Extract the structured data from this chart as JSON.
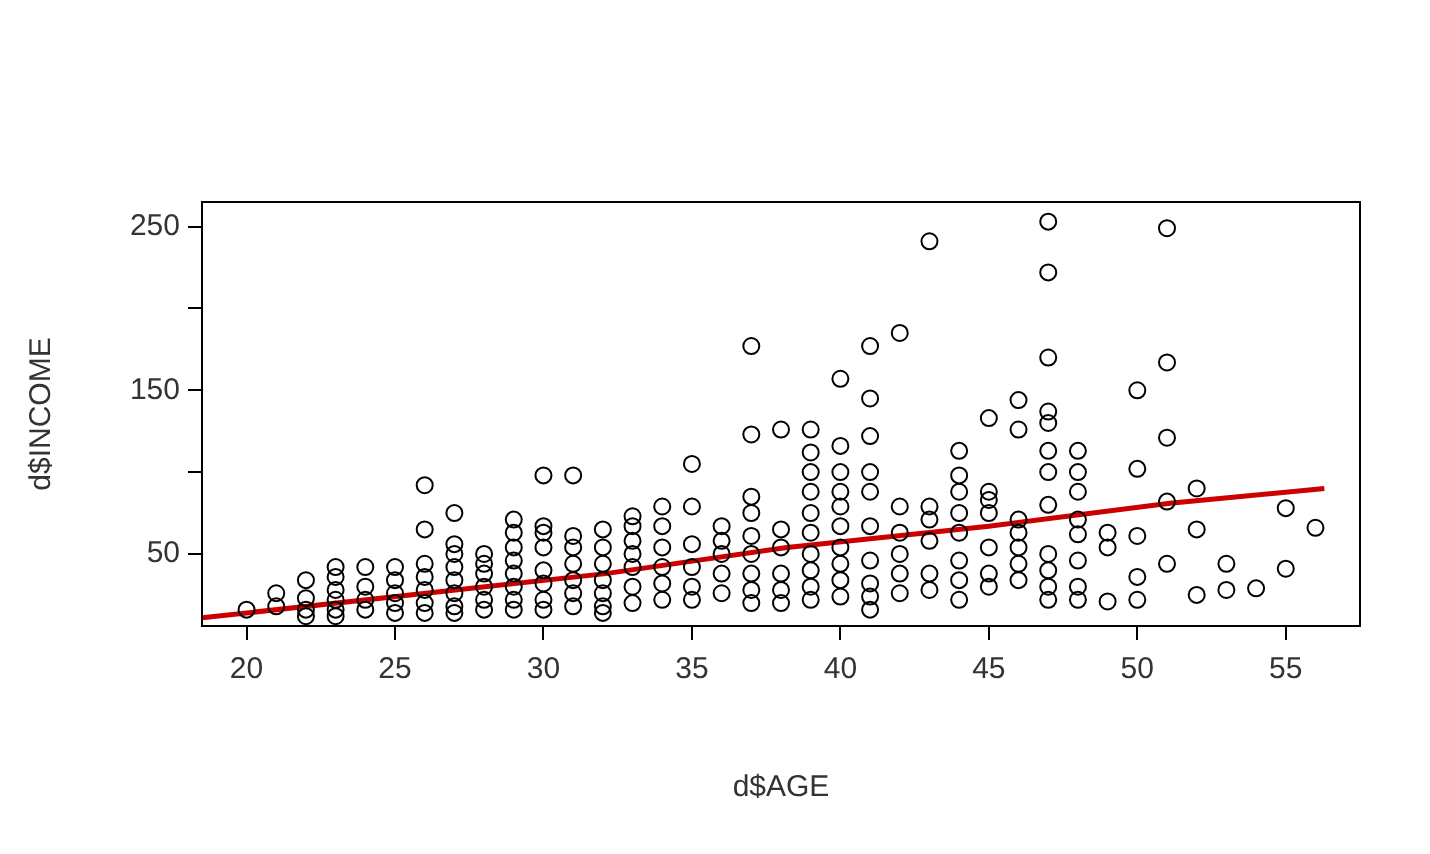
{
  "chart_data": {
    "type": "scatter",
    "xlabel": "d$AGE",
    "ylabel": "d$INCOME",
    "xlim": [
      18.5,
      57.5
    ],
    "ylim": [
      6,
      265
    ],
    "xticks": [
      20,
      25,
      30,
      35,
      40,
      45,
      50,
      55
    ],
    "yticks": [
      50,
      {
        "value": 100,
        "label": null
      },
      150,
      {
        "value": 200,
        "label": null
      },
      250
    ],
    "grid": false,
    "legend": false,
    "marker": "circle",
    "series": [
      {
        "type": "scatter",
        "color": "#000000",
        "x": [
          20,
          21,
          21,
          22,
          22,
          22,
          22,
          23,
          23,
          23,
          23,
          23,
          23,
          24,
          24,
          24,
          24,
          25,
          25,
          25,
          25,
          25,
          26,
          26,
          26,
          26,
          26,
          26,
          26,
          27,
          27,
          27,
          27,
          27,
          27,
          27,
          27,
          28,
          28,
          28,
          28,
          28,
          28,
          29,
          29,
          29,
          29,
          29,
          29,
          29,
          29,
          30,
          30,
          30,
          30,
          30,
          30,
          30,
          30,
          31,
          31,
          31,
          31,
          31,
          31,
          31,
          32,
          32,
          32,
          32,
          32,
          32,
          32,
          33,
          33,
          33,
          33,
          33,
          33,
          33,
          34,
          34,
          34,
          34,
          34,
          34,
          35,
          35,
          35,
          35,
          35,
          35,
          36,
          36,
          36,
          36,
          36,
          37,
          37,
          37,
          37,
          37,
          37,
          37,
          37,
          37,
          38,
          38,
          38,
          38,
          38,
          38,
          39,
          39,
          39,
          39,
          39,
          39,
          39,
          39,
          39,
          39,
          40,
          40,
          40,
          40,
          40,
          40,
          40,
          40,
          40,
          40,
          41,
          41,
          41,
          41,
          41,
          41,
          41,
          41,
          41,
          41,
          42,
          42,
          42,
          42,
          42,
          42,
          43,
          43,
          43,
          43,
          43,
          43,
          44,
          44,
          44,
          44,
          44,
          44,
          44,
          44,
          45,
          45,
          45,
          45,
          45,
          45,
          45,
          46,
          46,
          46,
          46,
          46,
          46,
          46,
          47,
          47,
          47,
          47,
          47,
          47,
          47,
          47,
          47,
          47,
          47,
          47,
          48,
          48,
          48,
          48,
          48,
          48,
          48,
          48,
          49,
          49,
          49,
          50,
          50,
          50,
          50,
          50,
          51,
          51,
          51,
          51,
          51,
          52,
          52,
          52,
          53,
          53,
          54,
          55,
          55,
          56
        ],
        "values": [
          16,
          26,
          18,
          34,
          23,
          16,
          12,
          42,
          36,
          28,
          22,
          16,
          12,
          42,
          30,
          22,
          16,
          42,
          34,
          26,
          20,
          14,
          92,
          65,
          44,
          36,
          28,
          20,
          14,
          75,
          56,
          50,
          42,
          34,
          26,
          18,
          14,
          50,
          44,
          38,
          30,
          22,
          16,
          71,
          63,
          54,
          46,
          38,
          30,
          22,
          16,
          98,
          67,
          63,
          54,
          40,
          32,
          22,
          16,
          98,
          61,
          54,
          44,
          34,
          26,
          18,
          65,
          54,
          44,
          34,
          26,
          18,
          14,
          73,
          67,
          58,
          50,
          42,
          30,
          20,
          79,
          67,
          54,
          42,
          32,
          22,
          105,
          79,
          56,
          42,
          30,
          22,
          67,
          58,
          50,
          38,
          26,
          177,
          123,
          85,
          75,
          61,
          50,
          38,
          28,
          20,
          126,
          65,
          54,
          38,
          28,
          20,
          126,
          112,
          100,
          88,
          75,
          63,
          50,
          40,
          30,
          22,
          157,
          116,
          100,
          88,
          79,
          67,
          54,
          44,
          34,
          24,
          177,
          145,
          122,
          100,
          88,
          67,
          46,
          32,
          24,
          16,
          185,
          79,
          63,
          50,
          38,
          26,
          241,
          79,
          71,
          58,
          38,
          28,
          113,
          98,
          88,
          75,
          63,
          46,
          34,
          22,
          133,
          88,
          83,
          75,
          54,
          38,
          30,
          144,
          126,
          71,
          63,
          54,
          44,
          34,
          253,
          222,
          170,
          137,
          130,
          113,
          100,
          80,
          50,
          40,
          30,
          22,
          113,
          100,
          88,
          71,
          62,
          46,
          30,
          22,
          63,
          54,
          21,
          150,
          102,
          61,
          36,
          22,
          249,
          167,
          121,
          82,
          44,
          90,
          65,
          25,
          44,
          28,
          29,
          78,
          41,
          66
        ]
      },
      {
        "type": "line",
        "color": "#cc0000",
        "marker": "none",
        "line_style": "solid",
        "x": [
          18.5,
          32.1,
          38.2,
          45,
          51.1,
          56.3
        ],
        "values": [
          11,
          38,
          54,
          67,
          81,
          90
        ]
      }
    ]
  }
}
